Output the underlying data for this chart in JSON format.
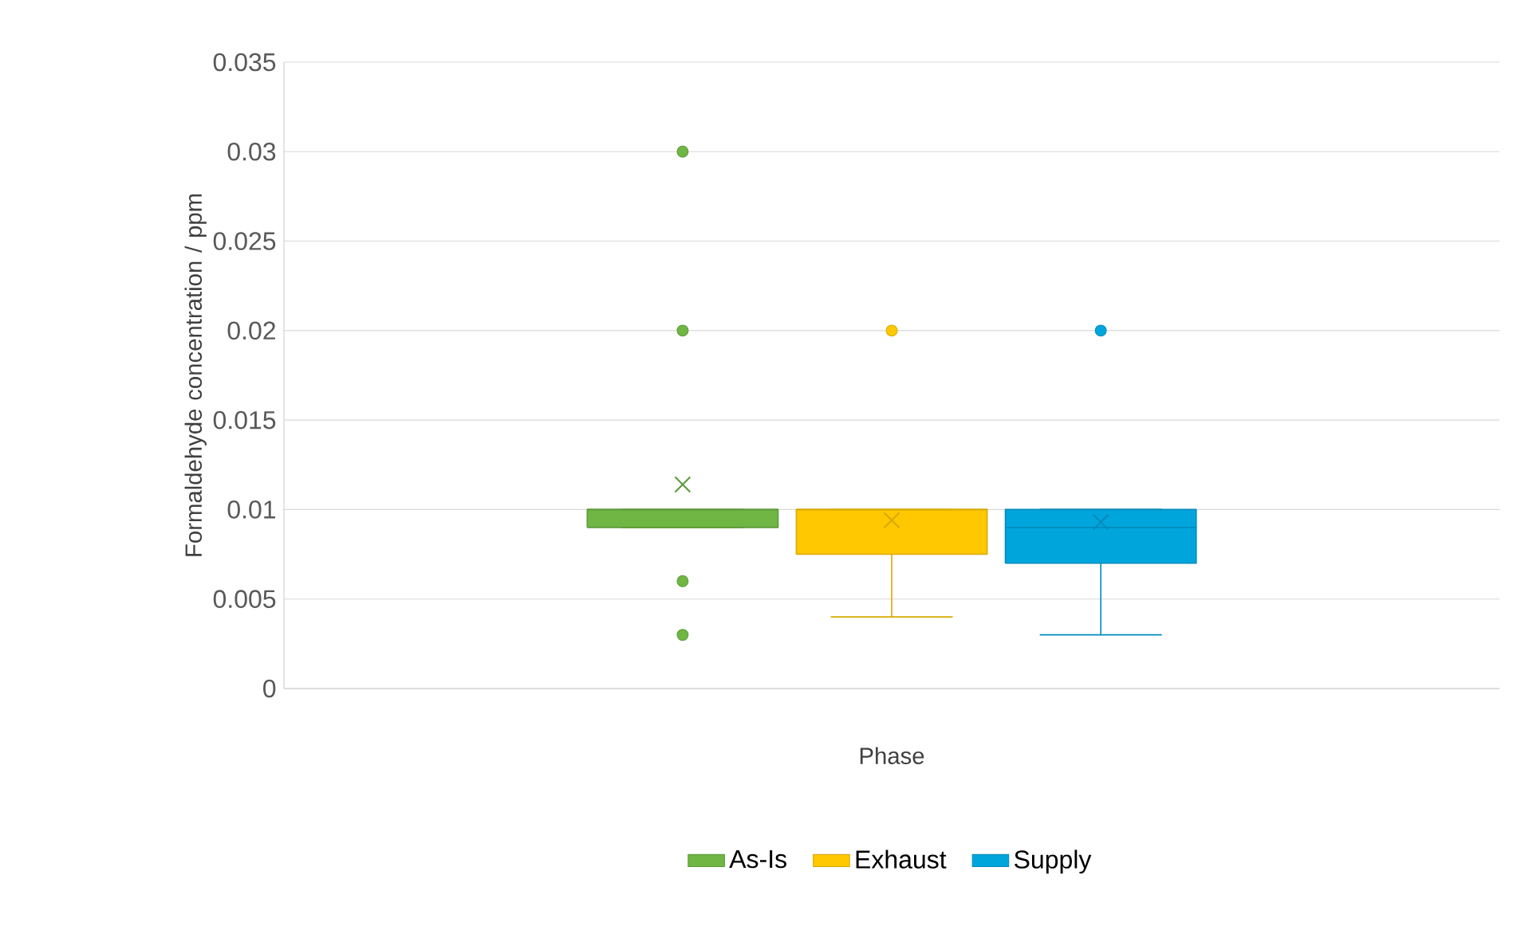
{
  "chart_data": {
    "type": "box",
    "xlabel": "Phase",
    "ylabel": "Formaldehyde concentration / ppm",
    "categories": [
      null
    ],
    "series": [
      {
        "name": "As-Is",
        "color": "#6fb644",
        "boxes": [
          {
            "low": 0.009,
            "q1": 0.009,
            "median": 0.01,
            "q3": 0.01,
            "high": 0.01,
            "mean": 0.0114,
            "outliers": [
              0.03,
              0.02,
              0.006,
              0.003
            ]
          }
        ]
      },
      {
        "name": "Exhaust",
        "color": "#ffc800",
        "boxes": [
          {
            "low": 0.004,
            "q1": 0.0075,
            "median": 0.01,
            "q3": 0.01,
            "high": 0.01,
            "mean": 0.0094,
            "outliers": [
              0.02
            ]
          }
        ]
      },
      {
        "name": "Supply",
        "color": "#00a5dc",
        "boxes": [
          {
            "low": 0.003,
            "q1": 0.007,
            "median": 0.009,
            "q3": 0.01,
            "high": 0.01,
            "mean": 0.0093,
            "outliers": [
              0.02
            ]
          }
        ]
      }
    ],
    "ylim": [
      0,
      0.035
    ],
    "yticks": [
      0,
      0.005,
      0.01,
      0.015,
      0.02,
      0.025,
      0.03,
      0.035
    ],
    "grid": "y",
    "legend": "bottom",
    "marker": "circle"
  }
}
